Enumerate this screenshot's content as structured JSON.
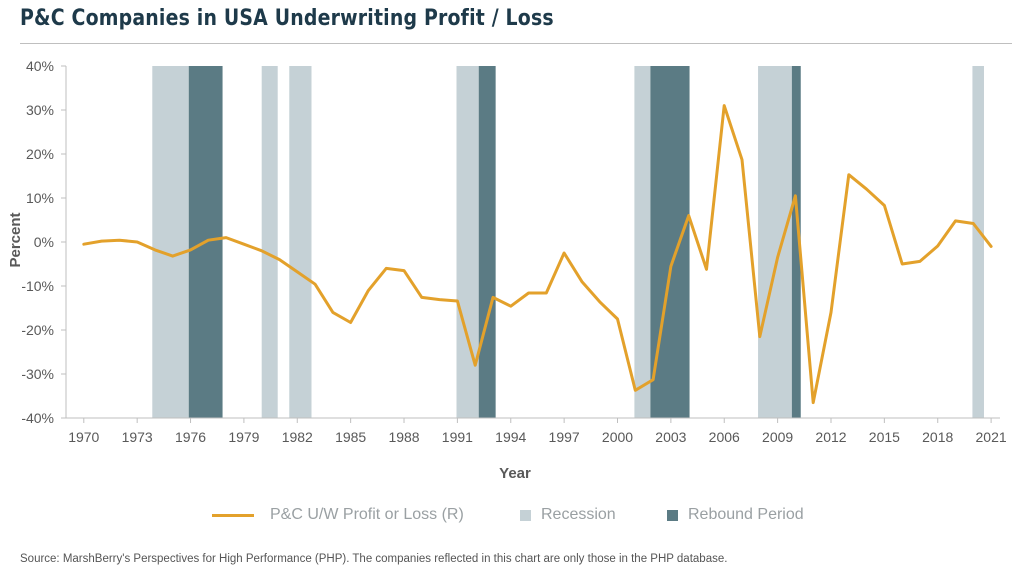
{
  "header": {
    "title": "P&C Companies in USA Underwriting Profit / Loss"
  },
  "chart_data": {
    "type": "line",
    "title": "P&C Companies in USA Underwriting Profit / Loss",
    "xlabel": "Year",
    "ylabel": "Percent",
    "xlim": [
      1969.0,
      2021.5
    ],
    "ylim": [
      -40,
      40
    ],
    "y_ticks": [
      -40,
      -30,
      -20,
      -10,
      0,
      10,
      20,
      30,
      40
    ],
    "y_tick_labels": [
      "-40%",
      "-30%",
      "-20%",
      "-10%",
      "0%",
      "10%",
      "20%",
      "30%",
      "40%"
    ],
    "x_ticks": [
      1970,
      1973,
      1976,
      1979,
      1982,
      1985,
      1988,
      1991,
      1994,
      1997,
      2000,
      2003,
      2006,
      2009,
      2012,
      2015,
      2018,
      2021
    ],
    "grid": false,
    "legend_position": "bottom",
    "colors": {
      "line": "#e3a12b",
      "recession": "#c5d1d6",
      "rebound": "#5b7b84",
      "axis": "#bfbfbf",
      "tick_text": "#595959"
    },
    "series": [
      {
        "name": "P&C U/W Profit or Loss (R)",
        "x": [
          1970,
          1971,
          1972,
          1973,
          1974,
          1975,
          1976,
          1977,
          1978,
          1979,
          1980,
          1981,
          1982,
          1983,
          1984,
          1985,
          1986,
          1987,
          1988,
          1989,
          1990,
          1991,
          1992,
          1993,
          1994,
          1995,
          1996,
          1997,
          1998,
          1999,
          2000,
          2001,
          2002,
          2003,
          2004,
          2005,
          2006,
          2007,
          2008,
          2009,
          2010,
          2011,
          2012,
          2013,
          2014,
          2015,
          2016,
          2017,
          2018,
          2019,
          2020,
          2021
        ],
        "values": [
          -0.5,
          0.2,
          0.4,
          0,
          -1.8,
          -3.2,
          -1.8,
          0.4,
          1.0,
          -0.5,
          -2.0,
          -4.0,
          -6.8,
          -9.6,
          -16.0,
          -18.3,
          -11.0,
          -6.0,
          -6.5,
          -12.6,
          -13.1,
          -13.4,
          -28.0,
          -12.6,
          -14.6,
          -11.6,
          -11.6,
          -2.5,
          -9.0,
          -13.6,
          -17.5,
          -33.7,
          -31.3,
          -5.5,
          6.0,
          -6.2,
          31.0,
          18.7,
          -21.5,
          -3.5,
          10.5,
          -36.5,
          -16.0,
          15.3,
          12.0,
          8.3,
          -5.0,
          -4.4,
          -0.9,
          4.8,
          4.2,
          -1.0
        ]
      },
      {
        "name": "Recession",
        "type": "band",
        "ranges": [
          [
            1973.85,
            1975.9
          ],
          [
            1980.0,
            1980.9
          ],
          [
            1981.55,
            1982.8
          ],
          [
            1990.95,
            1992.2
          ],
          [
            2000.95,
            2001.85
          ],
          [
            2007.9,
            2009.8
          ],
          [
            2019.95,
            2020.6
          ]
        ]
      },
      {
        "name": "Rebound Period",
        "type": "band",
        "ranges": [
          [
            1975.9,
            1977.8
          ],
          [
            1992.2,
            1993.15
          ],
          [
            2001.85,
            2004.05
          ],
          [
            2009.8,
            2010.3
          ]
        ]
      }
    ]
  },
  "legend": {
    "line_label": "P&C U/W Profit or Loss (R)",
    "recession_label": "Recession",
    "rebound_label": "Rebound Period"
  },
  "footer": {
    "source": "Source: MarshBerry's Perspectives for High Performance (PHP). The companies reflected in this chart are only those in the PHP database."
  }
}
